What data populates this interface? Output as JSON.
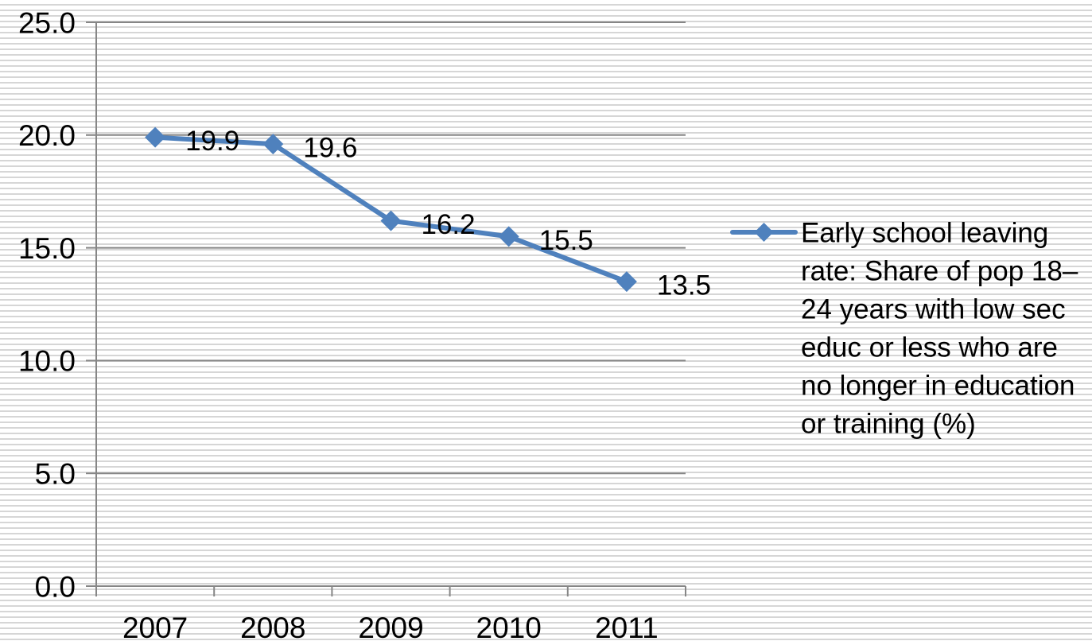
{
  "chart_data": {
    "type": "line",
    "categories": [
      "2007",
      "2008",
      "2009",
      "2010",
      "2011"
    ],
    "series": [
      {
        "name": "Early school leaving rate: Share of pop 18–24 years with low sec educ or less who are no longer in education or training (%)",
        "values": [
          19.9,
          19.6,
          16.2,
          15.5,
          13.5
        ],
        "color": "#4F81BD",
        "marker": "diamond",
        "data_labels": true
      }
    ],
    "ylim": [
      0,
      25
    ],
    "yticks": [
      "0.0",
      "5.0",
      "10.0",
      "15.0",
      "20.0",
      "25.0"
    ],
    "grid": {
      "horizontal": true,
      "vertical": false
    },
    "legend": {
      "position": "right"
    },
    "axis_color": "#868686",
    "grid_color": "#868686"
  }
}
